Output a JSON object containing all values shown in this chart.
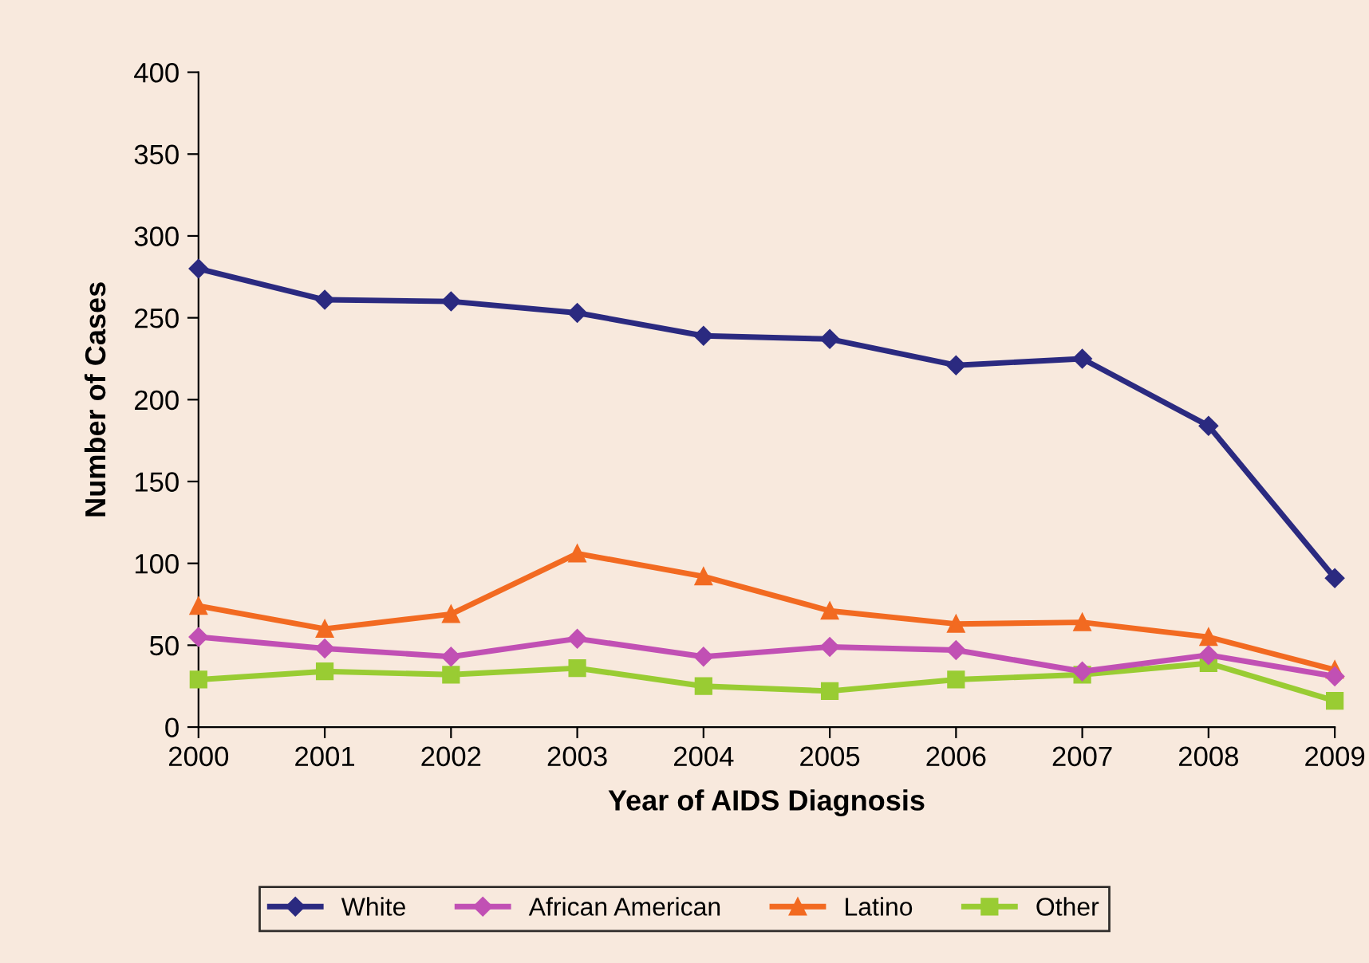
{
  "chart_data": {
    "type": "line",
    "xlabel": "Year of AIDS Diagnosis",
    "ylabel": "Number of Cases",
    "x": [
      2000,
      2001,
      2002,
      2003,
      2004,
      2005,
      2006,
      2007,
      2008,
      2009
    ],
    "xlim": [
      2000,
      2009
    ],
    "xticks": [
      2000,
      2001,
      2002,
      2003,
      2004,
      2005,
      2006,
      2007,
      2008,
      2009
    ],
    "ylim": [
      0,
      400
    ],
    "yticks": [
      0,
      50,
      100,
      150,
      200,
      250,
      300,
      350,
      400
    ],
    "grid": false,
    "legend": "bottom",
    "series": [
      {
        "name": "White",
        "color": "#2b2a80",
        "marker": "diamond",
        "values": [
          280,
          261,
          260,
          253,
          239,
          237,
          221,
          225,
          184,
          91
        ]
      },
      {
        "name": "African American",
        "color": "#c150b4",
        "marker": "diamond",
        "values": [
          55,
          48,
          43,
          54,
          43,
          49,
          47,
          34,
          44,
          31
        ]
      },
      {
        "name": "Latino",
        "color": "#f26a21",
        "marker": "triangle",
        "values": [
          74,
          60,
          69,
          106,
          92,
          71,
          63,
          64,
          55,
          35
        ]
      },
      {
        "name": "Other",
        "color": "#99cc33",
        "marker": "square",
        "values": [
          29,
          34,
          32,
          36,
          25,
          22,
          29,
          32,
          39,
          16
        ]
      }
    ]
  }
}
